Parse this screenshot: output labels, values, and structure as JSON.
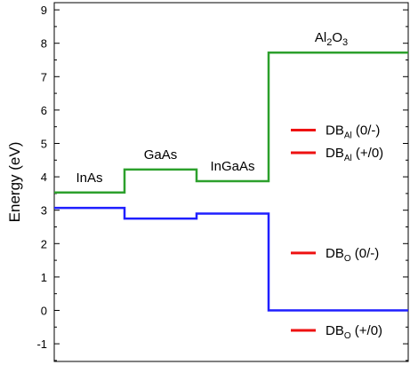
{
  "chart_data": {
    "type": "line",
    "title": "",
    "xlabel": "",
    "ylabel": "Energy (eV)",
    "ylim": [
      -1.4,
      9.3
    ],
    "yticks": [
      -1,
      0,
      1,
      2,
      3,
      4,
      5,
      6,
      7,
      8,
      9
    ],
    "grid": false,
    "regions": [
      {
        "label": "InAs",
        "sub": "",
        "after": "",
        "x": [
          0,
          1
        ],
        "cbm": 3.53,
        "vbm": 3.07
      },
      {
        "label": "GaAs",
        "sub": "",
        "after": "",
        "x": [
          1,
          2
        ],
        "cbm": 4.22,
        "vbm": 2.75
      },
      {
        "label": "InGaAs",
        "sub": "",
        "after": "",
        "x": [
          2,
          3
        ],
        "cbm": 3.87,
        "vbm": 2.9
      },
      {
        "label": "Al",
        "sub": "2",
        "after": "O",
        "sub2": "3",
        "x": [
          3,
          5
        ],
        "cbm": 7.72,
        "vbm": 0.0
      }
    ],
    "series": [
      {
        "key": "cbm",
        "color": "#2ca02c"
      },
      {
        "key": "vbm",
        "color": "#1f1fff"
      }
    ],
    "defect_levels": [
      {
        "base": "DB",
        "sub": "Al",
        "state": "(0/-)",
        "energy": 5.4,
        "color": "#ee1111"
      },
      {
        "base": "DB",
        "sub": "Al",
        "state": "(+/0)",
        "energy": 4.72,
        "color": "#ee1111"
      },
      {
        "base": "DB",
        "sub": "O",
        "state": "(0/-)",
        "energy": 1.72,
        "color": "#ee1111"
      },
      {
        "base": "DB",
        "sub": "O",
        "state": "(+/0)",
        "energy": -0.6,
        "color": "#ee1111"
      }
    ]
  }
}
